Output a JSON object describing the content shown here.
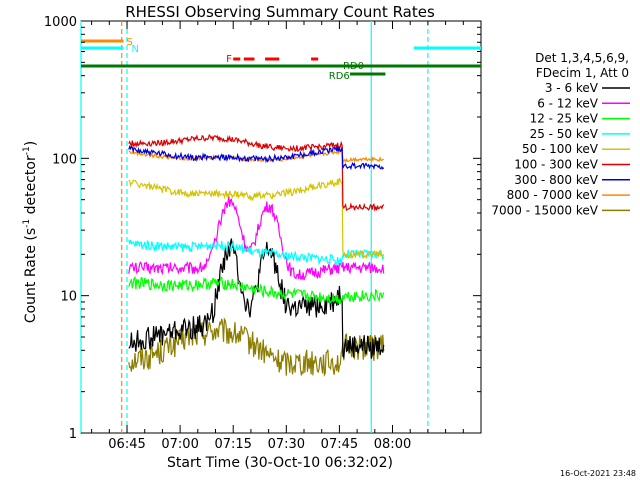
{
  "chart_data": {
    "type": "line",
    "title": "RHESSI Observing Summary Count Rates",
    "xlabel": "Start Time (30-Oct-10 06:32:02)",
    "ylabel_main": "Count Rate (s",
    "ylabel_sup1": "-1",
    "ylabel_mid": " detector",
    "ylabel_sup2": "-1",
    "ylabel_end": ")",
    "yscale": "log",
    "ylim": [
      1,
      1000
    ],
    "xlim_min": [
      392,
      505
    ],
    "yticks": [
      {
        "value": 1,
        "label": "1"
      },
      {
        "value": 10,
        "label": "10"
      },
      {
        "value": 100,
        "label": "100"
      },
      {
        "value": 1000,
        "label": "1000"
      }
    ],
    "xticks": [
      {
        "value": 405,
        "label": "06:45"
      },
      {
        "value": 420,
        "label": "07:00"
      },
      {
        "value": 435,
        "label": "07:15"
      },
      {
        "value": 450,
        "label": "07:30"
      },
      {
        "value": 465,
        "label": "07:45"
      },
      {
        "value": 480,
        "label": "08:00"
      }
    ],
    "legend_header": [
      "Det 1,3,4,5,6,9,",
      "FDecim 1, Att 0"
    ],
    "footer": "16-Oct-2021 23:48",
    "series": [
      {
        "name": "3 - 6 keV",
        "color": "#000000",
        "profile": "black"
      },
      {
        "name": "6 - 12 keV",
        "color": "#ff00ff",
        "profile": "magenta"
      },
      {
        "name": "12 - 25 keV",
        "color": "#00ff00",
        "profile": "green"
      },
      {
        "name": "25 - 50 keV",
        "color": "#00ffff",
        "profile": "cyan"
      },
      {
        "name": "50 - 100 keV",
        "color": "#d4c400",
        "profile": "yellow"
      },
      {
        "name": "100 - 300 keV",
        "color": "#dd0000",
        "profile": "red"
      },
      {
        "name": "300 - 800 keV",
        "color": "#0000dd",
        "profile": "blue"
      },
      {
        "name": "800 - 7000 keV",
        "color": "#ff8800",
        "profile": "orange"
      },
      {
        "name": "7000 - 15000 keV",
        "color": "#8b7d00",
        "profile": "olive"
      }
    ],
    "flag_bars": [
      {
        "label": "S",
        "color": "#ff8800",
        "segments": [
          [
            392,
            404
          ]
        ]
      },
      {
        "label": "N",
        "color": "#00ffff",
        "segments": [
          [
            392,
            404
          ],
          [
            486,
            505
          ]
        ]
      },
      {
        "label": "F",
        "color": "#ff0000",
        "segments": [
          [
            435,
            437
          ],
          [
            438,
            441
          ],
          [
            444,
            448
          ],
          [
            457,
            459
          ]
        ]
      },
      {
        "label": "RD0",
        "color": "#007700",
        "segments": [
          [
            392,
            505
          ]
        ]
      },
      {
        "label": "RD6",
        "color": "#007700",
        "segments": [
          [
            468,
            478
          ]
        ]
      }
    ],
    "vertical_lines": [
      {
        "x": 392,
        "color": "#00ffff",
        "dash": false
      },
      {
        "x": 403.5,
        "color": "#ff8800",
        "dash": true
      },
      {
        "x": 405,
        "color": "#00ffff",
        "dash": true
      },
      {
        "x": 474,
        "color": "#00ffff",
        "dash": false
      },
      {
        "x": 490,
        "color": "#00ffff",
        "dash": true
      }
    ]
  }
}
